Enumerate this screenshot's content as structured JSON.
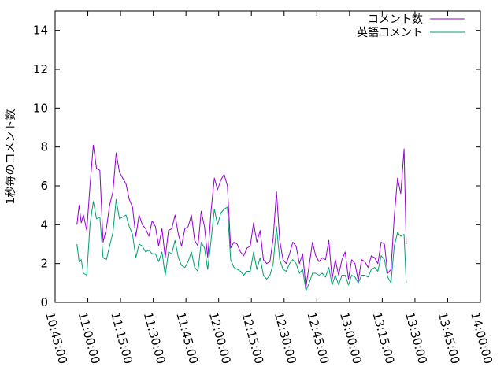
{
  "chart_data": {
    "type": "line",
    "title": "",
    "xlabel": "",
    "ylabel": "1秒毎のコメント数",
    "xlim": [
      "10:45:00",
      "14:00:00"
    ],
    "ylim": [
      0,
      15
    ],
    "grid": false,
    "legend_position": "top-right",
    "x_ticks": [
      "10:45:00",
      "11:00:00",
      "11:15:00",
      "11:30:00",
      "11:45:00",
      "12:00:00",
      "12:15:00",
      "12:30:00",
      "12:45:00",
      "13:00:00",
      "13:15:00",
      "13:30:00",
      "13:45:00",
      "14:00:00"
    ],
    "y_ticks": [
      "0",
      "2",
      "4",
      "6",
      "8",
      "10",
      "12",
      "14"
    ],
    "series": [
      {
        "name": "コメント数",
        "color": "#9400d3",
        "points": [
          [
            "10:55:00",
            4.0
          ],
          [
            "10:56:00",
            5.0
          ],
          [
            "10:57:00",
            4.1
          ],
          [
            "10:58:00",
            4.5
          ],
          [
            "10:59:30",
            3.7
          ],
          [
            "11:01:00",
            6.0
          ],
          [
            "11:02:30",
            8.1
          ],
          [
            "11:04:00",
            6.9
          ],
          [
            "11:05:30",
            6.8
          ],
          [
            "11:07:00",
            3.1
          ],
          [
            "11:08:30",
            3.8
          ],
          [
            "11:10:00",
            5.0
          ],
          [
            "11:11:30",
            5.7
          ],
          [
            "11:13:00",
            7.7
          ],
          [
            "11:14:30",
            6.7
          ],
          [
            "11:16:00",
            6.4
          ],
          [
            "11:17:30",
            6.1
          ],
          [
            "11:19:00",
            5.3
          ],
          [
            "11:20:30",
            4.9
          ],
          [
            "11:22:00",
            3.4
          ],
          [
            "11:23:30",
            4.5
          ],
          [
            "11:25:00",
            4.0
          ],
          [
            "11:26:30",
            3.8
          ],
          [
            "11:28:00",
            3.4
          ],
          [
            "11:29:30",
            4.2
          ],
          [
            "11:31:00",
            3.9
          ],
          [
            "11:32:30",
            2.9
          ],
          [
            "11:34:00",
            3.8
          ],
          [
            "11:35:30",
            2.3
          ],
          [
            "11:37:00",
            3.7
          ],
          [
            "11:38:30",
            3.8
          ],
          [
            "11:40:00",
            4.5
          ],
          [
            "11:41:30",
            3.5
          ],
          [
            "11:43:00",
            2.9
          ],
          [
            "11:44:30",
            3.8
          ],
          [
            "11:46:00",
            3.9
          ],
          [
            "11:47:30",
            4.5
          ],
          [
            "11:49:00",
            3.2
          ],
          [
            "11:50:30",
            2.9
          ],
          [
            "11:52:00",
            4.7
          ],
          [
            "11:53:30",
            3.9
          ],
          [
            "11:55:00",
            2.3
          ],
          [
            "11:56:30",
            4.7
          ],
          [
            "11:58:00",
            6.4
          ],
          [
            "11:59:30",
            5.8
          ],
          [
            "12:01:00",
            6.3
          ],
          [
            "12:02:30",
            6.6
          ],
          [
            "12:04:00",
            6.0
          ],
          [
            "12:05:30",
            2.8
          ],
          [
            "12:07:00",
            3.1
          ],
          [
            "12:08:30",
            3.0
          ],
          [
            "12:10:00",
            2.6
          ],
          [
            "12:11:30",
            2.4
          ],
          [
            "12:13:00",
            2.8
          ],
          [
            "12:14:30",
            2.9
          ],
          [
            "12:16:00",
            4.1
          ],
          [
            "12:17:30",
            3.1
          ],
          [
            "12:19:00",
            3.7
          ],
          [
            "12:20:30",
            2.2
          ],
          [
            "12:22:00",
            2.0
          ],
          [
            "12:23:30",
            2.1
          ],
          [
            "12:25:00",
            3.3
          ],
          [
            "12:26:30",
            5.7
          ],
          [
            "12:28:00",
            3.2
          ],
          [
            "12:29:30",
            2.2
          ],
          [
            "12:31:00",
            2.0
          ],
          [
            "12:32:30",
            2.5
          ],
          [
            "12:34:00",
            3.1
          ],
          [
            "12:35:30",
            2.9
          ],
          [
            "12:37:00",
            2.0
          ],
          [
            "12:38:30",
            2.5
          ],
          [
            "12:40:00",
            0.8
          ],
          [
            "12:41:30",
            1.9
          ],
          [
            "12:43:00",
            3.1
          ],
          [
            "12:44:30",
            2.4
          ],
          [
            "12:46:00",
            2.1
          ],
          [
            "12:47:30",
            2.3
          ],
          [
            "12:49:00",
            2.2
          ],
          [
            "12:50:30",
            3.2
          ],
          [
            "12:52:00",
            1.2
          ],
          [
            "12:53:30",
            2.2
          ],
          [
            "12:55:00",
            1.4
          ],
          [
            "12:56:30",
            2.2
          ],
          [
            "12:58:00",
            2.6
          ],
          [
            "12:59:30",
            1.2
          ],
          [
            "13:01:00",
            2.2
          ],
          [
            "13:02:30",
            2.0
          ],
          [
            "13:04:00",
            1.1
          ],
          [
            "13:05:30",
            2.2
          ],
          [
            "13:07:00",
            2.1
          ],
          [
            "13:08:30",
            1.8
          ],
          [
            "13:10:00",
            2.4
          ],
          [
            "13:11:30",
            2.3
          ],
          [
            "13:13:00",
            2.0
          ],
          [
            "13:14:30",
            3.1
          ],
          [
            "13:16:00",
            3.0
          ],
          [
            "13:17:30",
            1.5
          ],
          [
            "13:19:00",
            1.7
          ],
          [
            "13:20:30",
            4.4
          ],
          [
            "13:22:00",
            6.4
          ],
          [
            "13:23:30",
            5.6
          ],
          [
            "13:25:00",
            7.9
          ],
          [
            "13:26:00",
            3.0
          ]
        ]
      },
      {
        "name": "英語コメント",
        "color": "#009e73",
        "points": [
          [
            "10:55:00",
            3.0
          ],
          [
            "10:56:00",
            2.1
          ],
          [
            "10:57:00",
            2.2
          ],
          [
            "10:58:00",
            1.5
          ],
          [
            "10:59:30",
            1.4
          ],
          [
            "11:01:00",
            4.0
          ],
          [
            "11:02:30",
            5.2
          ],
          [
            "11:04:00",
            4.3
          ],
          [
            "11:05:30",
            4.4
          ],
          [
            "11:07:00",
            2.3
          ],
          [
            "11:08:30",
            2.2
          ],
          [
            "11:10:00",
            2.9
          ],
          [
            "11:11:30",
            3.6
          ],
          [
            "11:13:00",
            5.3
          ],
          [
            "11:14:30",
            4.3
          ],
          [
            "11:16:00",
            4.4
          ],
          [
            "11:17:30",
            4.5
          ],
          [
            "11:19:00",
            3.9
          ],
          [
            "11:20:30",
            3.5
          ],
          [
            "11:22:00",
            2.3
          ],
          [
            "11:23:30",
            3.0
          ],
          [
            "11:25:00",
            2.9
          ],
          [
            "11:26:30",
            2.6
          ],
          [
            "11:28:00",
            2.7
          ],
          [
            "11:29:30",
            2.5
          ],
          [
            "11:31:00",
            2.5
          ],
          [
            "11:32:30",
            2.1
          ],
          [
            "11:34:00",
            2.6
          ],
          [
            "11:35:30",
            1.4
          ],
          [
            "11:37:00",
            2.6
          ],
          [
            "11:38:30",
            2.5
          ],
          [
            "11:40:00",
            3.2
          ],
          [
            "11:41:30",
            2.3
          ],
          [
            "11:43:00",
            1.9
          ],
          [
            "11:44:30",
            1.8
          ],
          [
            "11:46:00",
            2.1
          ],
          [
            "11:47:30",
            2.6
          ],
          [
            "11:49:00",
            1.8
          ],
          [
            "11:50:30",
            1.6
          ],
          [
            "11:52:00",
            3.1
          ],
          [
            "11:53:30",
            2.8
          ],
          [
            "11:55:00",
            1.7
          ],
          [
            "11:56:30",
            3.2
          ],
          [
            "11:58:00",
            4.8
          ],
          [
            "11:59:30",
            4.0
          ],
          [
            "12:01:00",
            4.6
          ],
          [
            "12:02:30",
            4.8
          ],
          [
            "12:04:00",
            4.9
          ],
          [
            "12:05:30",
            2.2
          ],
          [
            "12:07:00",
            1.8
          ],
          [
            "12:08:30",
            1.7
          ],
          [
            "12:10:00",
            1.6
          ],
          [
            "12:11:30",
            1.4
          ],
          [
            "12:13:00",
            1.6
          ],
          [
            "12:14:30",
            1.6
          ],
          [
            "12:16:00",
            2.6
          ],
          [
            "12:17:30",
            1.7
          ],
          [
            "12:19:00",
            2.3
          ],
          [
            "12:20:30",
            1.4
          ],
          [
            "12:22:00",
            1.2
          ],
          [
            "12:23:30",
            1.4
          ],
          [
            "12:25:00",
            2.0
          ],
          [
            "12:26:30",
            3.9
          ],
          [
            "12:28:00",
            2.2
          ],
          [
            "12:29:30",
            1.7
          ],
          [
            "12:31:00",
            1.6
          ],
          [
            "12:32:30",
            2.0
          ],
          [
            "12:34:00",
            2.2
          ],
          [
            "12:35:30",
            2.0
          ],
          [
            "12:37:00",
            1.5
          ],
          [
            "12:38:30",
            1.7
          ],
          [
            "12:40:00",
            0.6
          ],
          [
            "12:41:30",
            1.0
          ],
          [
            "12:43:00",
            1.5
          ],
          [
            "12:44:30",
            1.5
          ],
          [
            "12:46:00",
            1.4
          ],
          [
            "12:47:30",
            1.5
          ],
          [
            "12:49:00",
            1.3
          ],
          [
            "12:50:30",
            1.8
          ],
          [
            "12:52:00",
            0.9
          ],
          [
            "12:53:30",
            1.4
          ],
          [
            "12:55:00",
            0.9
          ],
          [
            "12:56:30",
            1.4
          ],
          [
            "12:58:00",
            1.4
          ],
          [
            "12:59:30",
            0.9
          ],
          [
            "13:01:00",
            1.4
          ],
          [
            "13:02:30",
            1.3
          ],
          [
            "13:04:00",
            1.0
          ],
          [
            "13:05:30",
            1.4
          ],
          [
            "13:07:00",
            1.4
          ],
          [
            "13:08:30",
            1.3
          ],
          [
            "13:10:00",
            1.7
          ],
          [
            "13:11:30",
            1.8
          ],
          [
            "13:13:00",
            1.6
          ],
          [
            "13:14:30",
            2.4
          ],
          [
            "13:16:00",
            2.2
          ],
          [
            "13:17:30",
            1.3
          ],
          [
            "13:19:00",
            1.0
          ],
          [
            "13:20:30",
            2.9
          ],
          [
            "13:22:00",
            3.6
          ],
          [
            "13:23:30",
            3.4
          ],
          [
            "13:25:00",
            3.5
          ],
          [
            "13:26:00",
            1.0
          ]
        ]
      }
    ]
  }
}
